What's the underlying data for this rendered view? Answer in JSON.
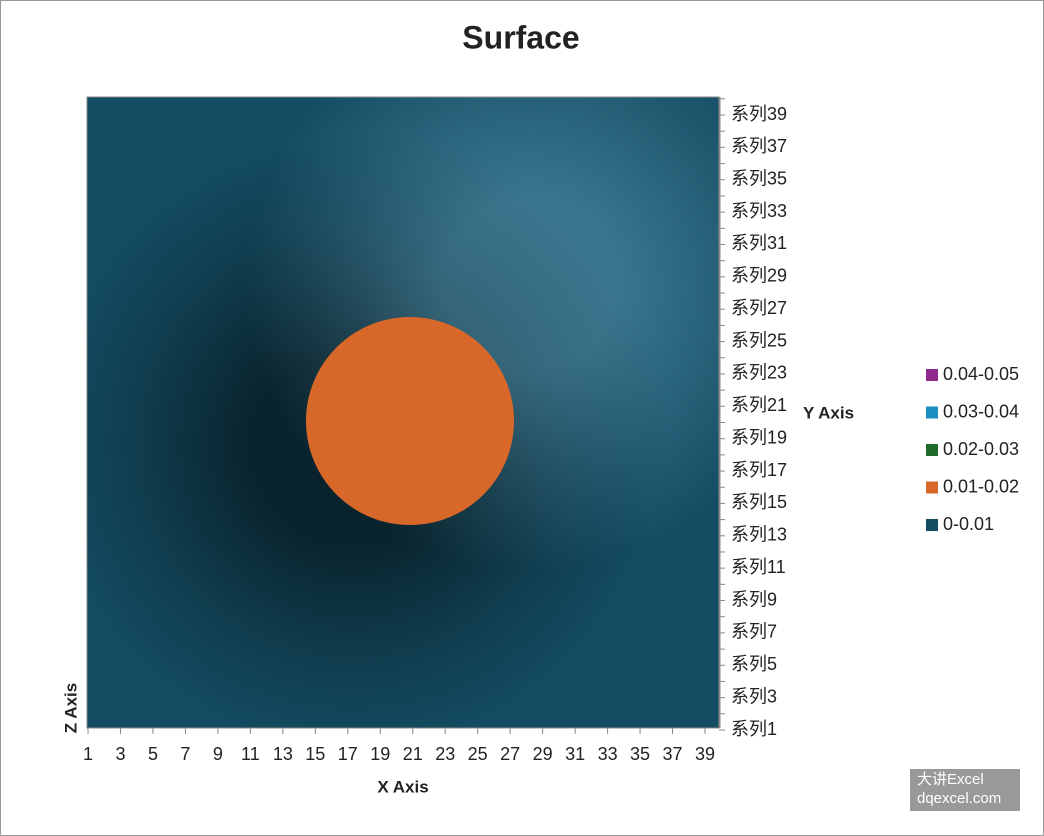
{
  "chart_data": {
    "type": "surface",
    "title": "Surface",
    "x_label": "X Axis",
    "y_label": "Y Axis",
    "z_label": "Z Axis",
    "x_categories": [
      1,
      3,
      5,
      7,
      9,
      11,
      13,
      15,
      17,
      19,
      21,
      23,
      25,
      27,
      29,
      31,
      33,
      35,
      37,
      39
    ],
    "y_categories": [
      "系列1",
      "系列3",
      "系列5",
      "系列7",
      "系列9",
      "系列11",
      "系列13",
      "系列15",
      "系列17",
      "系列19",
      "系列21",
      "系列23",
      "系列25",
      "系列27",
      "系列29",
      "系列31",
      "系列33",
      "系列35",
      "系列37",
      "系列39"
    ],
    "bands": [
      {
        "name": "0.04-0.05",
        "color": "#8e2a8e",
        "range": [
          0.04,
          0.05
        ]
      },
      {
        "name": "0.03-0.04",
        "color": "#1a8fc0",
        "range": [
          0.03,
          0.04
        ]
      },
      {
        "name": "0.02-0.03",
        "color": "#1e6b2c",
        "range": [
          0.02,
          0.03
        ]
      },
      {
        "name": "0.01-0.02",
        "color": "#d8672a",
        "range": [
          0.01,
          0.02
        ]
      },
      {
        "name": "0-0.01",
        "color": "#144d63",
        "range": [
          0,
          0.01
        ]
      }
    ],
    "legend": "right"
  },
  "watermark": {
    "line1": "大讲Excel",
    "line2": "dqexcel.com"
  }
}
